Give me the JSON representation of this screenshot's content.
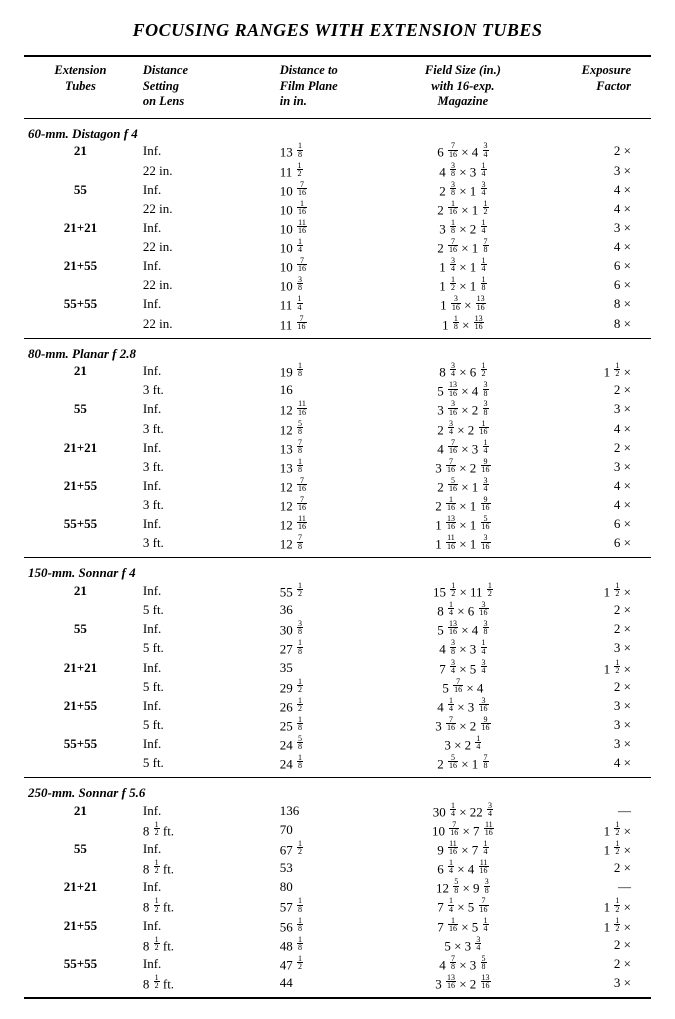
{
  "title": "FOCUSING RANGES WITH EXTENSION TUBES",
  "columns": [
    "Extension\nTubes",
    "Distance\nSetting\non Lens",
    "Distance to\nFilm Plane\nin in.",
    "Field Size (in.)\nwith 16-exp.\nMagazine",
    "Exposure\nFactor"
  ],
  "sections": [
    {
      "heading": "60-mm. Distagon f 4",
      "rows": [
        {
          "tube": "21",
          "dist": "Inf.",
          "film": "13 1/8",
          "field": "6 7/16 × 4 3/4",
          "exp": "2  ×"
        },
        {
          "tube": "",
          "dist": "22 in.",
          "film": "11 1/2",
          "field": "4 3/8 × 3 1/4",
          "exp": "3  ×"
        },
        {
          "tube": "55",
          "dist": "Inf.",
          "film": "10 7/16",
          "field": "2 3/8 × 1 3/4",
          "exp": "4  ×"
        },
        {
          "tube": "",
          "dist": "22 in.",
          "film": "10 1/16",
          "field": "2 1/16 × 1 1/2",
          "exp": "4  ×"
        },
        {
          "tube": "21+21",
          "dist": "Inf.",
          "film": "10 11/16",
          "field": "3 1/8 × 2 1/4",
          "exp": "3  ×"
        },
        {
          "tube": "",
          "dist": "22 in.",
          "film": "10 1/4",
          "field": "2 7/16 × 1 7/8",
          "exp": "4  ×"
        },
        {
          "tube": "21+55",
          "dist": "Inf.",
          "film": "10 7/16",
          "field": "1 3/4 × 1 1/4",
          "exp": "6  ×"
        },
        {
          "tube": "",
          "dist": "22 in.",
          "film": "10 3/8",
          "field": "1 1/2 × 1 1/8",
          "exp": "6  ×"
        },
        {
          "tube": "55+55",
          "dist": "Inf.",
          "film": "11 1/4",
          "field": "1 3/16 × 13/16",
          "exp": "8  ×"
        },
        {
          "tube": "",
          "dist": "22 in.",
          "film": "11 7/16",
          "field": "1 1/8 × 13/16",
          "exp": "8  ×"
        }
      ]
    },
    {
      "heading": "80-mm. Planar f 2.8",
      "rows": [
        {
          "tube": "21",
          "dist": "Inf.",
          "film": "19 1/8",
          "field": "8 3/4 × 6 1/2",
          "exp": "1 1/2 ×"
        },
        {
          "tube": "",
          "dist": "3 ft.",
          "film": "16",
          "field": "5 13/16 × 4 3/8",
          "exp": "2  ×"
        },
        {
          "tube": "55",
          "dist": "Inf.",
          "film": "12 11/16",
          "field": "3 3/16 × 2 3/8",
          "exp": "3  ×"
        },
        {
          "tube": "",
          "dist": "3 ft.",
          "film": "12 5/8",
          "field": "2 3/4 × 2 1/16",
          "exp": "4  ×"
        },
        {
          "tube": "21+21",
          "dist": "Inf.",
          "film": "13 7/8",
          "field": "4 7/16 × 3 1/4",
          "exp": "2  ×"
        },
        {
          "tube": "",
          "dist": "3 ft.",
          "film": "13 1/8",
          "field": "3 7/16 × 2 9/16",
          "exp": "3  ×"
        },
        {
          "tube": "21+55",
          "dist": "Inf.",
          "film": "12 7/16",
          "field": "2 5/16 × 1 3/4",
          "exp": "4  ×"
        },
        {
          "tube": "",
          "dist": "3 ft.",
          "film": "12 7/16",
          "field": "2 1/16 × 1 9/16",
          "exp": "4  ×"
        },
        {
          "tube": "55+55",
          "dist": "Inf.",
          "film": "12 11/16",
          "field": "1 13/16 × 1 5/16",
          "exp": "6  ×"
        },
        {
          "tube": "",
          "dist": "3 ft.",
          "film": "12 7/8",
          "field": "1 11/16 × 1 3/16",
          "exp": "6  ×"
        }
      ]
    },
    {
      "heading": "150-mm. Sonnar f 4",
      "rows": [
        {
          "tube": "21",
          "dist": "Inf.",
          "film": "55 1/2",
          "field": "15 1/2 × 11 1/2",
          "exp": "1 1/2 ×"
        },
        {
          "tube": "",
          "dist": "5 ft.",
          "film": "36",
          "field": "8 1/4 × 6 3/16",
          "exp": "2  ×"
        },
        {
          "tube": "55",
          "dist": "Inf.",
          "film": "30 3/8",
          "field": "5 13/16 × 4 3/8",
          "exp": "2  ×"
        },
        {
          "tube": "",
          "dist": "5 ft.",
          "film": "27 1/8",
          "field": "4 3/8 × 3 1/4",
          "exp": "3  ×"
        },
        {
          "tube": "21+21",
          "dist": "Inf.",
          "film": "35",
          "field": "7 3/4 × 5 3/4",
          "exp": "1 1/2 ×"
        },
        {
          "tube": "",
          "dist": "5 ft.",
          "film": "29 1/2",
          "field": "5 7/16 × 4",
          "exp": "2  ×"
        },
        {
          "tube": "21+55",
          "dist": "Inf.",
          "film": "26 1/2",
          "field": "4 1/4 × 3 3/16",
          "exp": "3  ×"
        },
        {
          "tube": "",
          "dist": "5 ft.",
          "film": "25 1/8",
          "field": "3 7/16 × 2 9/16",
          "exp": "3  ×"
        },
        {
          "tube": "55+55",
          "dist": "Inf.",
          "film": "24 5/8",
          "field": "3 × 2 1/4",
          "exp": "3  ×"
        },
        {
          "tube": "",
          "dist": "5 ft.",
          "film": "24 1/8",
          "field": "2 5/16 × 1 7/8",
          "exp": "4  ×"
        }
      ]
    },
    {
      "heading": "250-mm. Sonnar f 5.6",
      "rows": [
        {
          "tube": "21",
          "dist": "Inf.",
          "film": "136",
          "field": "30 1/4 × 22 3/4",
          "exp": "—"
        },
        {
          "tube": "",
          "dist": "8 1/2 ft.",
          "film": "70",
          "field": "10 7/16 × 7 11/16",
          "exp": "1 1/2 ×"
        },
        {
          "tube": "55",
          "dist": "Inf.",
          "film": "67 1/2",
          "field": "9 11/16 × 7 1/4",
          "exp": "1 1/2 ×"
        },
        {
          "tube": "",
          "dist": "8 1/2 ft.",
          "film": "53",
          "field": "6 1/4 × 4 11/16",
          "exp": "2  ×"
        },
        {
          "tube": "21+21",
          "dist": "Inf.",
          "film": "80",
          "field": "12 5/8 × 9 3/8",
          "exp": "—"
        },
        {
          "tube": "",
          "dist": "8 1/2 ft.",
          "film": "57 1/8",
          "field": "7 1/4 × 5 7/16",
          "exp": "1 1/2 ×"
        },
        {
          "tube": "21+55",
          "dist": "Inf.",
          "film": "56 1/8",
          "field": "7 1/16 × 5 1/4",
          "exp": "1 1/2 ×"
        },
        {
          "tube": "",
          "dist": "8 1/2 ft.",
          "film": "48 1/8",
          "field": "5 × 3 3/4",
          "exp": "2  ×"
        },
        {
          "tube": "55+55",
          "dist": "Inf.",
          "film": "47 1/2",
          "field": "4 7/8 × 3 5/8",
          "exp": "2  ×"
        },
        {
          "tube": "",
          "dist": "8 1/2 ft.",
          "film": "44",
          "field": "3 13/16 × 2 13/16",
          "exp": "3  ×"
        }
      ]
    }
  ]
}
